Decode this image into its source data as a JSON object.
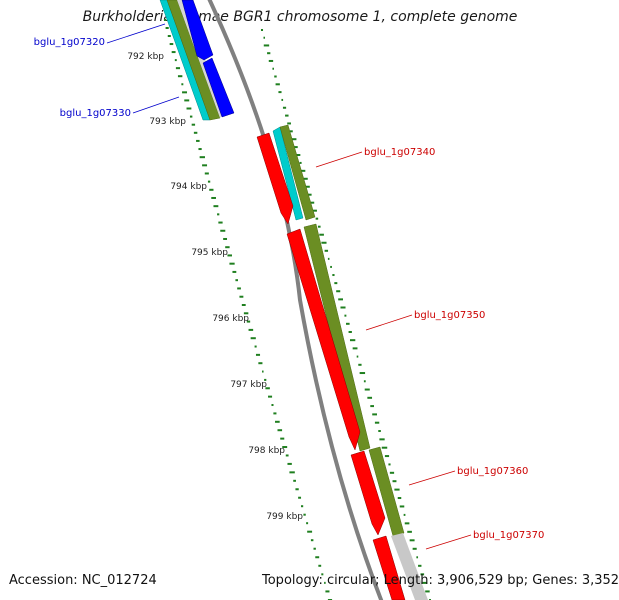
{
  "header": {
    "title": "Burkholderia glumae BGR1 chromosome 1, complete genome"
  },
  "footer": {
    "accession": "Accession: NC_012724",
    "stats": "Topology: circular; Length: 3,906,529 bp; Genes: 3,352"
  },
  "scale": {
    "ticks": [
      {
        "label": "792 kbp",
        "value": 792
      },
      {
        "label": "793 kbp",
        "value": 793
      },
      {
        "label": "794 kbp",
        "value": 794
      },
      {
        "label": "795 kbp",
        "value": 795
      },
      {
        "label": "796 kbp",
        "value": 796
      },
      {
        "label": "797 kbp",
        "value": 797
      },
      {
        "label": "798 kbp",
        "value": 798
      },
      {
        "label": "799 kbp",
        "value": 799
      }
    ]
  },
  "genes": [
    {
      "name": "bglu_1g07320",
      "strand": "minus",
      "color": "#0000cc"
    },
    {
      "name": "bglu_1g07330",
      "strand": "minus",
      "color": "#0000cc"
    },
    {
      "name": "bglu_1g07340",
      "strand": "plus",
      "color": "#cc0000"
    },
    {
      "name": "bglu_1g07350",
      "strand": "plus",
      "color": "#cc0000"
    },
    {
      "name": "bglu_1g07360",
      "strand": "plus",
      "color": "#cc0000"
    },
    {
      "name": "bglu_1g07370",
      "strand": "plus",
      "color": "#cc0000"
    }
  ],
  "colors": {
    "cds_plus": "#ff0000",
    "cds_minus": "#0000ff",
    "feature_teal": "#00cccc",
    "feature_olive": "#6b8e23",
    "feature_grey": "#c8c8c8",
    "backbone": "#808080",
    "gc_marks": "#1f7f1f"
  }
}
